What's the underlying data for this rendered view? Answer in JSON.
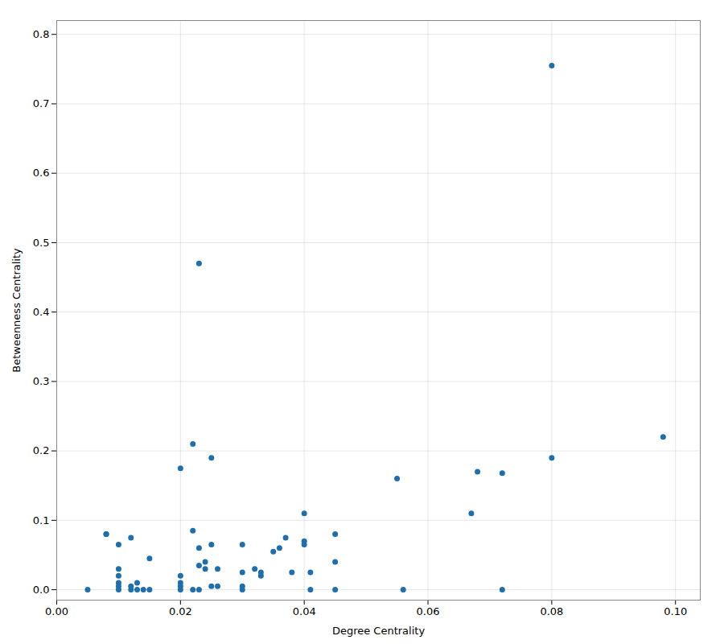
{
  "chart_data": {
    "type": "scatter",
    "xlabel": "Degree Centrality",
    "ylabel": "Betweenness Centrality",
    "x": [
      0.005,
      0.008,
      0.008,
      0.01,
      0.01,
      0.01,
      0.01,
      0.01,
      0.01,
      0.012,
      0.012,
      0.012,
      0.013,
      0.013,
      0.014,
      0.015,
      0.015,
      0.02,
      0.02,
      0.02,
      0.02,
      0.02,
      0.022,
      0.022,
      0.022,
      0.023,
      0.023,
      0.023,
      0.023,
      0.024,
      0.024,
      0.025,
      0.025,
      0.025,
      0.026,
      0.026,
      0.03,
      0.03,
      0.03,
      0.03,
      0.032,
      0.033,
      0.033,
      0.035,
      0.036,
      0.037,
      0.038,
      0.04,
      0.04,
      0.04,
      0.041,
      0.041,
      0.045,
      0.045,
      0.045,
      0.055,
      0.056,
      0.067,
      0.068,
      0.072,
      0.072,
      0.08,
      0.08,
      0.098
    ],
    "values": [
      0.0,
      0.08,
      0.08,
      0.0,
      0.005,
      0.01,
      0.02,
      0.03,
      0.065,
      0.0,
      0.005,
      0.075,
      0.0,
      0.01,
      0.0,
      0.0,
      0.045,
      0.175,
      0.0,
      0.005,
      0.01,
      0.02,
      0.21,
      0.085,
      0.0,
      0.47,
      0.06,
      0.035,
      0.0,
      0.04,
      0.03,
      0.19,
      0.065,
      0.005,
      0.03,
      0.005,
      0.0,
      0.005,
      0.025,
      0.065,
      0.03,
      0.025,
      0.02,
      0.055,
      0.06,
      0.075,
      0.025,
      0.11,
      0.07,
      0.065,
      0.025,
      0.0,
      0.04,
      0.08,
      0.0,
      0.16,
      0.0,
      0.11,
      0.17,
      0.0,
      0.168,
      0.755,
      0.19,
      0.22
    ],
    "color": "#1f6fad",
    "xlim": [
      0,
      0.104
    ],
    "ylim": [
      -0.015,
      0.82
    ],
    "xticks": [
      {
        "value": 0,
        "label": "0.00"
      },
      0.02,
      0.04,
      0.06,
      0.08,
      {
        "value": 0.1,
        "label": "0.10"
      }
    ],
    "yticks": [
      {
        "value": 0,
        "label": "0.0"
      },
      0.1,
      0.2,
      0.3,
      0.4,
      0.5,
      0.6,
      0.7,
      0.8
    ],
    "grid": true
  }
}
